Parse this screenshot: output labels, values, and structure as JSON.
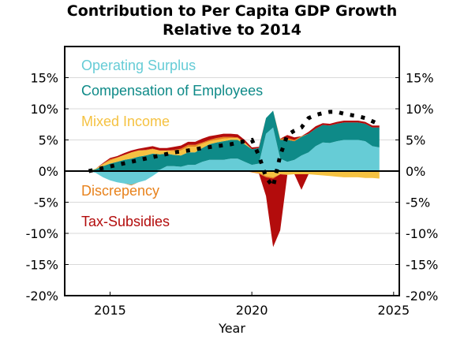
{
  "chart_data": {
    "type": "area",
    "title_lines": [
      "Contribution to Per Capita GDP Growth",
      "Relative to 2014"
    ],
    "xlabel": "Year",
    "ylabel": "",
    "xlim": [
      2013.4,
      2025.2
    ],
    "ylim": [
      -20,
      20
    ],
    "x_ticks": [
      2015,
      2020,
      2025
    ],
    "y_ticks": [
      -20,
      -15,
      -10,
      -5,
      0,
      5,
      10,
      15
    ],
    "y_tick_format": "percent",
    "grid": "horizontal",
    "right_axis_labels": true,
    "x": [
      2014.25,
      2014.5,
      2014.75,
      2015.0,
      2015.25,
      2015.5,
      2015.75,
      2016.0,
      2016.25,
      2016.5,
      2016.75,
      2017.0,
      2017.25,
      2017.5,
      2017.75,
      2018.0,
      2018.25,
      2018.5,
      2018.75,
      2019.0,
      2019.25,
      2019.5,
      2019.75,
      2020.0,
      2020.25,
      2020.5,
      2020.75,
      2021.0,
      2021.25,
      2021.5,
      2021.75,
      2022.0,
      2022.25,
      2022.5,
      2022.75,
      2023.0,
      2023.25,
      2023.5,
      2023.75,
      2024.0,
      2024.25,
      2024.5
    ],
    "series": [
      {
        "name": "Operating Surplus",
        "color": "#66ccd6",
        "values": [
          0,
          -0.3,
          -1.0,
          -1.5,
          -1.8,
          -2.0,
          -2.2,
          -1.8,
          -1.5,
          -0.8,
          0.2,
          0.8,
          0.8,
          0.7,
          1.0,
          1.0,
          1.5,
          1.8,
          1.8,
          1.8,
          2.0,
          2.0,
          1.5,
          1.0,
          1.2,
          6.0,
          7.0,
          2.0,
          1.5,
          1.8,
          2.5,
          3.0,
          4.0,
          4.6,
          4.5,
          4.8,
          5.0,
          5.0,
          5.0,
          4.8,
          4.0,
          3.8
        ]
      },
      {
        "name": "Compensation of Employees",
        "color": "#0e8a88",
        "values": [
          0,
          0.3,
          0.8,
          1.2,
          1.5,
          1.8,
          2.0,
          2.3,
          2.5,
          2.8,
          2.5,
          2.0,
          1.8,
          1.8,
          2.0,
          2.0,
          2.2,
          2.5,
          2.8,
          3.0,
          3.0,
          3.0,
          2.8,
          2.5,
          2.5,
          2.5,
          2.7,
          3.0,
          3.5,
          3.0,
          3.0,
          3.0,
          2.8,
          2.8,
          2.8,
          2.8,
          2.8,
          2.8,
          2.8,
          2.8,
          3.0,
          3.2
        ]
      },
      {
        "name": "Mixed Income",
        "color": "#f5c242",
        "values": [
          0,
          0.1,
          0.3,
          0.5,
          0.6,
          0.8,
          1.0,
          1.0,
          0.8,
          0.7,
          0.6,
          0.5,
          0.6,
          0.8,
          0.9,
          0.9,
          0.7,
          0.5,
          0.4,
          0.4,
          0.3,
          0.3,
          0.3,
          -0.1,
          -0.3,
          -0.8,
          -1.0,
          -0.5,
          -0.6,
          -0.5,
          -0.5,
          -0.5,
          -0.6,
          -0.7,
          -0.8,
          -0.9,
          -1.0,
          -1.0,
          -1.0,
          -1.1,
          -1.1,
          -1.2
        ]
      },
      {
        "name": "Discrepency",
        "color": "#e8821c",
        "values": [
          0,
          0.0,
          0.1,
          0.2,
          0.1,
          0.0,
          -0.1,
          0.0,
          0.1,
          0.1,
          0.0,
          0.0,
          0.2,
          0.3,
          0.3,
          0.3,
          0.2,
          0.2,
          0.3,
          0.3,
          0.2,
          0.1,
          0.0,
          -0.1,
          -0.1,
          -0.2,
          -0.2,
          0.2,
          0.3,
          0.2,
          0.1,
          0.0,
          0.0,
          0.0,
          0.0,
          0.0,
          0.0,
          0.0,
          0.0,
          0.0,
          0.0,
          0.0
        ]
      },
      {
        "name": "Tax-Subsidies",
        "color": "#b30c0c",
        "values": [
          0,
          0.0,
          0.1,
          0.2,
          0.2,
          0.3,
          0.3,
          0.3,
          0.4,
          0.4,
          0.4,
          0.4,
          0.5,
          0.5,
          0.5,
          0.5,
          0.6,
          0.6,
          0.5,
          0.5,
          0.5,
          0.5,
          0.4,
          0.3,
          0.2,
          -3.0,
          -11.0,
          -9.0,
          0.5,
          0.4,
          -2.5,
          0.3,
          0.4,
          0.3,
          0.3,
          0.3,
          0.3,
          0.3,
          0.3,
          0.3,
          0.3,
          0.3
        ]
      }
    ],
    "total_line": {
      "style": "dotted",
      "color": "#000000",
      "x": [
        2014.25,
        2014.75,
        2015.25,
        2015.75,
        2016.25,
        2016.75,
        2017.25,
        2017.75,
        2018.25,
        2018.75,
        2019.25,
        2019.75,
        2020.0,
        2020.25,
        2020.5,
        2020.75,
        2021.0,
        2021.25,
        2021.5,
        2021.75,
        2022.0,
        2022.25,
        2022.5,
        2022.75,
        2023.0,
        2023.25,
        2023.5,
        2023.75,
        2024.0,
        2024.25,
        2024.5
      ],
      "values": [
        0,
        0.5,
        1.0,
        1.5,
        2.0,
        2.5,
        3.0,
        3.3,
        3.7,
        4.0,
        4.3,
        4.8,
        5.0,
        2.5,
        -1.0,
        -2.5,
        2.5,
        5.8,
        6.5,
        7.0,
        8.5,
        9.0,
        9.3,
        9.5,
        9.5,
        9.2,
        9.0,
        8.8,
        8.5,
        8.0,
        7.5
      ]
    }
  }
}
